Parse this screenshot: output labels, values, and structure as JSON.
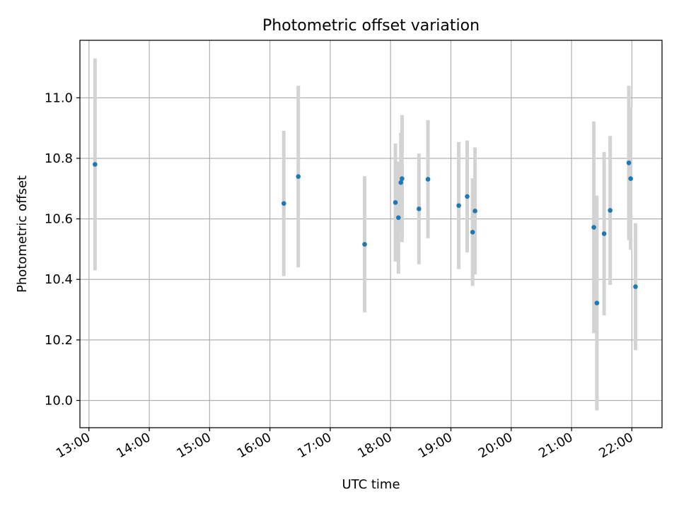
{
  "chart_data": {
    "type": "scatter",
    "title": "Photometric offset variation",
    "xlabel": "UTC time",
    "ylabel": "Photometric offset",
    "x_unit": "time of day (hours, UTC)",
    "xlim": [
      12.85,
      22.5
    ],
    "ylim": [
      9.91,
      11.19
    ],
    "xticks": [
      13,
      14,
      15,
      16,
      17,
      18,
      19,
      20,
      21,
      22
    ],
    "xtick_labels": [
      "13:00",
      "14:00",
      "15:00",
      "16:00",
      "17:00",
      "18:00",
      "19:00",
      "20:00",
      "21:00",
      "22:00"
    ],
    "yticks": [
      10.0,
      10.2,
      10.4,
      10.6,
      10.8,
      11.0
    ],
    "ytick_labels": [
      "10.0",
      "10.2",
      "10.4",
      "10.6",
      "10.8",
      "11.0"
    ],
    "grid": true,
    "marker_color": "#1f77b4",
    "errorbar_color": "#d3d3d3",
    "points": [
      {
        "x": 13.1,
        "y": 10.78,
        "err": 0.35
      },
      {
        "x": 16.23,
        "y": 10.651,
        "err": 0.24
      },
      {
        "x": 16.47,
        "y": 10.74,
        "err": 0.3
      },
      {
        "x": 17.57,
        "y": 10.516,
        "err": 0.225
      },
      {
        "x": 18.08,
        "y": 10.654,
        "err": 0.195
      },
      {
        "x": 18.13,
        "y": 10.604,
        "err": 0.185
      },
      {
        "x": 18.17,
        "y": 10.72,
        "err": 0.165
      },
      {
        "x": 18.19,
        "y": 10.733,
        "err": 0.21
      },
      {
        "x": 18.47,
        "y": 10.633,
        "err": 0.183
      },
      {
        "x": 18.62,
        "y": 10.731,
        "err": 0.195
      },
      {
        "x": 19.13,
        "y": 10.644,
        "err": 0.21
      },
      {
        "x": 19.27,
        "y": 10.674,
        "err": 0.185
      },
      {
        "x": 19.36,
        "y": 10.556,
        "err": 0.178
      },
      {
        "x": 19.4,
        "y": 10.626,
        "err": 0.21
      },
      {
        "x": 21.37,
        "y": 10.572,
        "err": 0.35
      },
      {
        "x": 21.42,
        "y": 10.322,
        "err": 0.355
      },
      {
        "x": 21.54,
        "y": 10.551,
        "err": 0.27
      },
      {
        "x": 21.64,
        "y": 10.628,
        "err": 0.246
      },
      {
        "x": 21.95,
        "y": 10.785,
        "err": 0.255
      },
      {
        "x": 21.98,
        "y": 10.733,
        "err": 0.235
      },
      {
        "x": 22.06,
        "y": 10.376,
        "err": 0.21
      }
    ]
  }
}
